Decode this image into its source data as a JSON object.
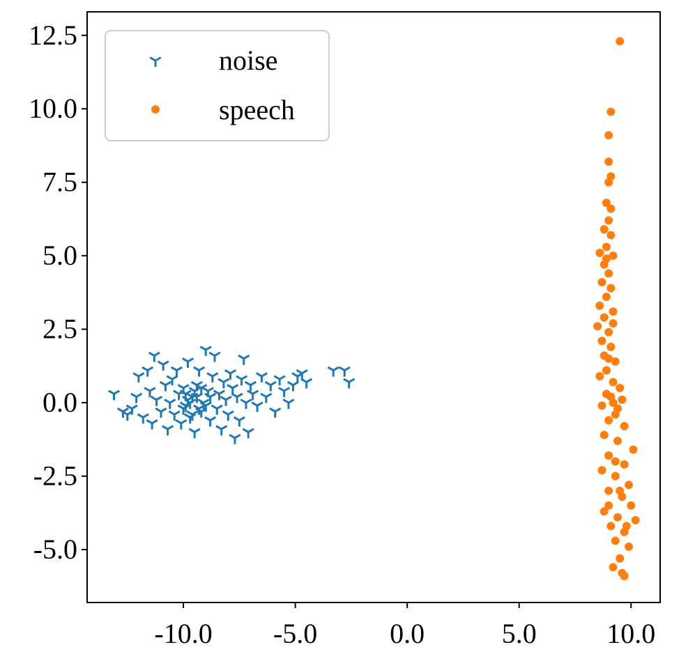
{
  "chart_data": {
    "type": "scatter",
    "title": "",
    "xlabel": "",
    "ylabel": "",
    "xlim": [
      -14.3,
      11.3
    ],
    "ylim": [
      -6.8,
      13.3
    ],
    "xticks": [
      -10.0,
      -5.0,
      0.0,
      5.0,
      10.0
    ],
    "xtick_labels": [
      "-10.0",
      "-5.0",
      "0.0",
      "5.0",
      "10.0"
    ],
    "yticks": [
      -5.0,
      -2.5,
      0.0,
      2.5,
      5.0,
      7.5,
      10.0,
      12.5
    ],
    "ytick_labels": [
      "-5.0",
      "-2.5",
      "0.0",
      "2.5",
      "5.0",
      "7.5",
      "10.0",
      "12.5"
    ],
    "grid": false,
    "legend": {
      "position": "top-left",
      "entries": [
        "noise",
        "speech"
      ]
    },
    "series": [
      {
        "name": "noise",
        "marker": "tri_down",
        "color": "#1f77b4",
        "points": [
          [
            -13.1,
            0.3
          ],
          [
            -12.7,
            -0.3
          ],
          [
            -12.5,
            -0.4
          ],
          [
            -12.3,
            -0.2
          ],
          [
            -12.1,
            0.2
          ],
          [
            -12.0,
            0.9
          ],
          [
            -11.8,
            -0.5
          ],
          [
            -11.6,
            1.1
          ],
          [
            -11.5,
            0.4
          ],
          [
            -11.4,
            -0.7
          ],
          [
            -11.3,
            1.6
          ],
          [
            -11.2,
            0.1
          ],
          [
            -11.0,
            -0.3
          ],
          [
            -10.9,
            1.3
          ],
          [
            -10.8,
            0.6
          ],
          [
            -10.7,
            -0.9
          ],
          [
            -10.6,
            0.0
          ],
          [
            -10.5,
            0.8
          ],
          [
            -10.4,
            -0.4
          ],
          [
            -10.3,
            1.1
          ],
          [
            -10.2,
            0.3
          ],
          [
            -10.1,
            -0.7
          ],
          [
            -10.0,
            0.5
          ],
          [
            -9.9,
            -0.1
          ],
          [
            -9.8,
            1.4
          ],
          [
            -9.7,
            -0.5
          ],
          [
            -9.6,
            0.2
          ],
          [
            -9.5,
            -1.0
          ],
          [
            -9.4,
            0.6
          ],
          [
            -9.3,
            1.1
          ],
          [
            -9.2,
            -0.3
          ],
          [
            -9.1,
            0.0
          ],
          [
            -9.0,
            1.8
          ],
          [
            -8.9,
            0.4
          ],
          [
            -8.8,
            -0.6
          ],
          [
            -8.7,
            0.9
          ],
          [
            -8.6,
            1.6
          ],
          [
            -8.5,
            -0.2
          ],
          [
            -8.4,
            0.3
          ],
          [
            -8.3,
            -0.9
          ],
          [
            -8.2,
            0.7
          ],
          [
            -8.1,
            0.1
          ],
          [
            -8.0,
            -0.4
          ],
          [
            -7.9,
            1.0
          ],
          [
            -7.8,
            0.5
          ],
          [
            -7.7,
            -1.2
          ],
          [
            -7.6,
            0.2
          ],
          [
            -7.5,
            -0.6
          ],
          [
            -7.4,
            0.8
          ],
          [
            -7.3,
            1.5
          ],
          [
            -7.2,
            0.0
          ],
          [
            -7.1,
            -1.0
          ],
          [
            -7.0,
            0.6
          ],
          [
            -6.9,
            0.3
          ],
          [
            -6.7,
            -0.1
          ],
          [
            -6.5,
            0.9
          ],
          [
            -6.3,
            0.2
          ],
          [
            -6.1,
            0.6
          ],
          [
            -5.9,
            -0.3
          ],
          [
            -5.7,
            0.8
          ],
          [
            -5.5,
            0.4
          ],
          [
            -5.3,
            0.0
          ],
          [
            -5.1,
            0.6
          ],
          [
            -4.9,
            0.9
          ],
          [
            -4.7,
            1.0
          ],
          [
            -4.5,
            0.7
          ],
          [
            -3.3,
            1.1
          ],
          [
            -2.8,
            1.1
          ],
          [
            -2.6,
            0.7
          ],
          [
            -9.9,
            0.3
          ],
          [
            -9.7,
            0.0
          ],
          [
            -9.5,
            0.4
          ],
          [
            -9.3,
            -0.2
          ],
          [
            -9.6,
            -0.4
          ],
          [
            -9.8,
            0.1
          ],
          [
            -10.0,
            -0.2
          ],
          [
            -9.4,
            0.2
          ],
          [
            -9.2,
            0.5
          ],
          [
            -9.0,
            -0.1
          ],
          [
            -8.8,
            0.2
          ]
        ]
      },
      {
        "name": "speech",
        "marker": "circle",
        "color": "#ff7f0e",
        "points": [
          [
            9.5,
            12.3
          ],
          [
            9.1,
            9.9
          ],
          [
            9.0,
            9.1
          ],
          [
            9.0,
            8.2
          ],
          [
            9.1,
            7.7
          ],
          [
            9.0,
            7.5
          ],
          [
            8.9,
            6.8
          ],
          [
            9.1,
            6.6
          ],
          [
            9.0,
            6.2
          ],
          [
            8.8,
            5.9
          ],
          [
            9.1,
            5.7
          ],
          [
            8.9,
            5.3
          ],
          [
            8.6,
            5.1
          ],
          [
            9.2,
            5.0
          ],
          [
            8.8,
            4.7
          ],
          [
            9.0,
            4.4
          ],
          [
            8.7,
            4.1
          ],
          [
            9.1,
            3.9
          ],
          [
            8.9,
            3.6
          ],
          [
            8.6,
            3.3
          ],
          [
            9.2,
            3.1
          ],
          [
            8.8,
            2.9
          ],
          [
            8.5,
            2.6
          ],
          [
            9.0,
            2.4
          ],
          [
            8.7,
            2.1
          ],
          [
            9.1,
            1.9
          ],
          [
            8.8,
            1.6
          ],
          [
            9.3,
            1.4
          ],
          [
            8.9,
            1.1
          ],
          [
            8.6,
            0.9
          ],
          [
            9.2,
            0.7
          ],
          [
            9.5,
            0.5
          ],
          [
            8.9,
            0.3
          ],
          [
            9.6,
            0.1
          ],
          [
            8.7,
            -0.1
          ],
          [
            9.3,
            -0.4
          ],
          [
            9.0,
            -0.6
          ],
          [
            9.7,
            -0.8
          ],
          [
            8.8,
            -1.1
          ],
          [
            9.4,
            -1.3
          ],
          [
            10.1,
            -1.6
          ],
          [
            9.0,
            -1.8
          ],
          [
            9.7,
            -2.1
          ],
          [
            8.7,
            -2.3
          ],
          [
            9.3,
            -2.5
          ],
          [
            9.9,
            -2.8
          ],
          [
            9.0,
            -3.0
          ],
          [
            9.6,
            -3.2
          ],
          [
            10.0,
            -3.5
          ],
          [
            8.8,
            -3.7
          ],
          [
            9.4,
            -3.9
          ],
          [
            10.2,
            -4.0
          ],
          [
            9.1,
            -4.2
          ],
          [
            9.7,
            -4.4
          ],
          [
            9.3,
            -4.7
          ],
          [
            9.9,
            -4.9
          ],
          [
            9.5,
            -5.3
          ],
          [
            9.2,
            -5.6
          ],
          [
            9.6,
            -5.8
          ],
          [
            9.7,
            -5.9
          ],
          [
            9.2,
            0.0
          ],
          [
            9.4,
            -0.2
          ],
          [
            9.1,
            0.2
          ],
          [
            9.3,
            -2.0
          ],
          [
            9.5,
            -3.0
          ],
          [
            9.0,
            -3.5
          ],
          [
            9.8,
            -4.2
          ],
          [
            9.2,
            2.7
          ],
          [
            8.9,
            4.9
          ],
          [
            9.0,
            1.5
          ]
        ]
      }
    ]
  }
}
